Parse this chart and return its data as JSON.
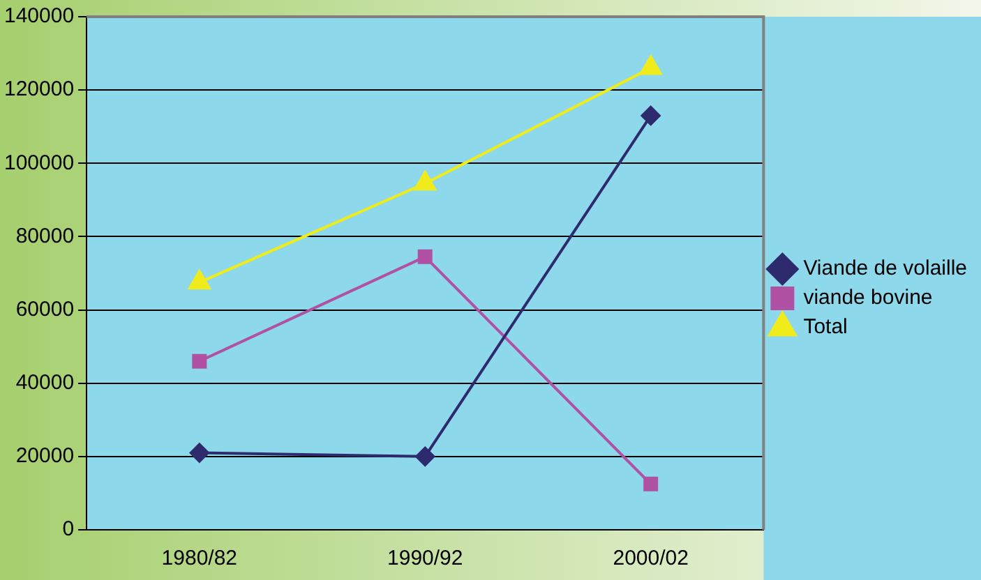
{
  "chart_data": {
    "type": "line",
    "categories": [
      "1980/82",
      "1990/92",
      "2000/02"
    ],
    "series": [
      {
        "name": "Viande de volaille",
        "color": "#2e2a6e",
        "marker": "diamond",
        "values": [
          21000,
          20000,
          113000
        ]
      },
      {
        "name": "viande bovine",
        "color": "#b051a3",
        "marker": "square",
        "values": [
          46000,
          74500,
          12500
        ]
      },
      {
        "name": "Total",
        "color": "#f0ec1c",
        "marker": "triangle",
        "values": [
          67500,
          94500,
          126000
        ]
      }
    ],
    "ylim": [
      0,
      140000
    ],
    "yticks": [
      0,
      20000,
      40000,
      60000,
      80000,
      100000,
      120000,
      140000
    ],
    "grid": "y",
    "legend": "right"
  }
}
